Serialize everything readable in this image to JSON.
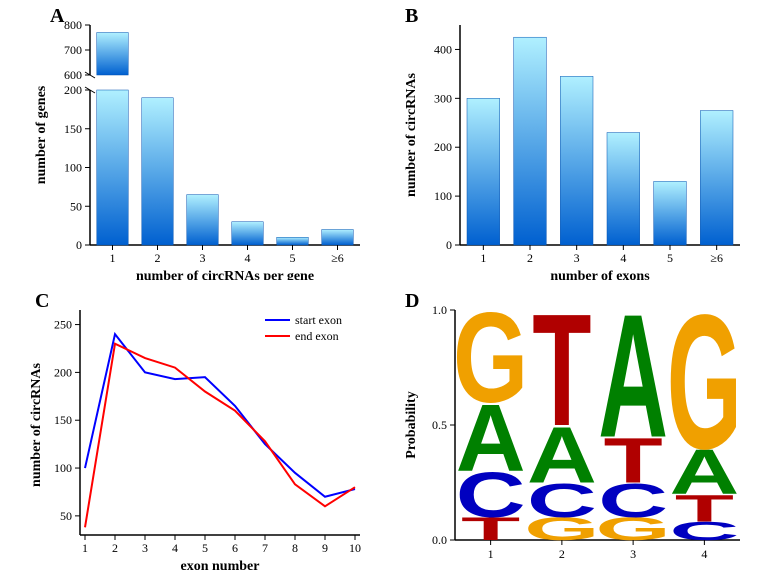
{
  "panelA": {
    "label": "A",
    "type": "bar",
    "xlabel": "number of circRNAs per gene",
    "ylabel": "number of genes",
    "categories": [
      "1",
      "2",
      "3",
      "4",
      "5",
      "≥6"
    ],
    "values": [
      770,
      190,
      65,
      30,
      10,
      20
    ],
    "upper_ticks": [
      600,
      700,
      800
    ],
    "lower_ticks": [
      0,
      50,
      100,
      150,
      200
    ],
    "upper_range": [
      600,
      800
    ],
    "lower_range": [
      0,
      200
    ],
    "bar_gradient_top": "#b0f0ff",
    "bar_gradient_bottom": "#0060d0",
    "bar_width": 0.7,
    "axis_fontsize": 14,
    "tick_fontsize": 12,
    "axis_color": "#000000",
    "background_color": "#ffffff"
  },
  "panelB": {
    "label": "B",
    "type": "bar",
    "xlabel": "number of exons",
    "ylabel": "number of circRNAs",
    "categories": [
      "1",
      "2",
      "3",
      "4",
      "5",
      "≥6"
    ],
    "values": [
      300,
      425,
      345,
      230,
      130,
      275
    ],
    "yticks": [
      0,
      100,
      200,
      300,
      400
    ],
    "ylim": [
      0,
      450
    ],
    "bar_gradient_top": "#b0f0ff",
    "bar_gradient_bottom": "#0060d0",
    "bar_width": 0.7,
    "axis_fontsize": 14,
    "tick_fontsize": 12,
    "axis_color": "#000000",
    "background_color": "#ffffff"
  },
  "panelC": {
    "label": "C",
    "type": "line",
    "xlabel": "exon number",
    "ylabel": "number of circRNAs",
    "xticks": [
      1,
      2,
      3,
      4,
      5,
      6,
      7,
      8,
      9,
      10
    ],
    "yticks": [
      50,
      100,
      150,
      200,
      250
    ],
    "xlim": [
      1,
      10
    ],
    "ylim": [
      30,
      260
    ],
    "series": [
      {
        "name": "start exon",
        "color": "#0000ff",
        "x": [
          1,
          2,
          3,
          4,
          5,
          6,
          7,
          8,
          9,
          10
        ],
        "y": [
          100,
          240,
          200,
          193,
          195,
          165,
          125,
          95,
          70,
          78
        ]
      },
      {
        "name": "end exon",
        "color": "#ff0000",
        "x": [
          1,
          2,
          3,
          4,
          5,
          6,
          7,
          8,
          9,
          10
        ],
        "y": [
          38,
          230,
          215,
          205,
          180,
          160,
          128,
          83,
          60,
          80
        ]
      }
    ],
    "legend_position": "top-right",
    "line_width": 2,
    "axis_fontsize": 14,
    "tick_fontsize": 12,
    "axis_color": "#000000",
    "background_color": "#ffffff"
  },
  "panelD": {
    "label": "D",
    "type": "seqlogo",
    "xlabel_positions": [
      "1",
      "2",
      "3",
      "4"
    ],
    "ylabel": "Probability",
    "yticks": [
      "0.0",
      "0.5",
      "1.0"
    ],
    "ylim": [
      0,
      1
    ],
    "positions": [
      {
        "letters": [
          {
            "char": "G",
            "prob": 0.4,
            "color": "#f0a000"
          },
          {
            "char": "A",
            "prob": 0.3,
            "color": "#008000"
          },
          {
            "char": "C",
            "prob": 0.2,
            "color": "#0000c0"
          },
          {
            "char": "T",
            "prob": 0.1,
            "color": "#b00000"
          }
        ]
      },
      {
        "letters": [
          {
            "char": "T",
            "prob": 0.5,
            "color": "#b00000"
          },
          {
            "char": "A",
            "prob": 0.25,
            "color": "#008000"
          },
          {
            "char": "C",
            "prob": 0.15,
            "color": "#0000c0"
          },
          {
            "char": "G",
            "prob": 0.1,
            "color": "#f0a000"
          }
        ]
      },
      {
        "letters": [
          {
            "char": "A",
            "prob": 0.55,
            "color": "#008000"
          },
          {
            "char": "T",
            "prob": 0.2,
            "color": "#b00000"
          },
          {
            "char": "C",
            "prob": 0.15,
            "color": "#0000c0"
          },
          {
            "char": "G",
            "prob": 0.1,
            "color": "#f0a000"
          }
        ]
      },
      {
        "letters": [
          {
            "char": "G",
            "prob": 0.6,
            "color": "#f0a000"
          },
          {
            "char": "A",
            "prob": 0.2,
            "color": "#008000"
          },
          {
            "char": "T",
            "prob": 0.12,
            "color": "#b00000"
          },
          {
            "char": "C",
            "prob": 0.08,
            "color": "#0000c0"
          }
        ]
      }
    ],
    "letter_font": "Arial",
    "letter_weight": "bold",
    "axis_fontsize": 14,
    "tick_fontsize": 12,
    "axis_color": "#000000",
    "background_color": "#ffffff"
  }
}
